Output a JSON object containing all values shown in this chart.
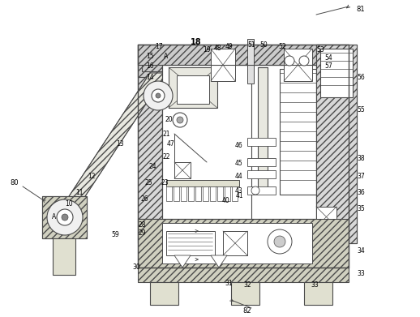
{
  "bg_color": "#ffffff",
  "line_color": "#4a4a4a",
  "fig_width": 5.18,
  "fig_height": 3.91,
  "dpi": 100,
  "hatch_dense": "////",
  "hatch_cross": "xxxx"
}
